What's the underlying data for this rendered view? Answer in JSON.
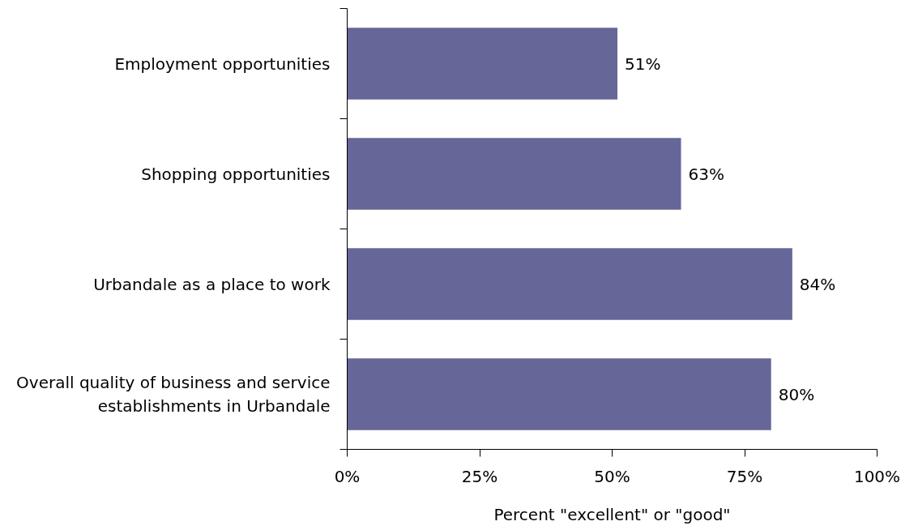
{
  "chart_data": {
    "type": "bar",
    "orientation": "horizontal",
    "categories": [
      "Employment opportunities",
      "Shopping opportunities",
      "Urbandale as a place to work",
      "Overall quality of business and service establishments in Urbandale"
    ],
    "values": [
      51,
      63,
      84,
      80
    ],
    "value_labels": [
      "51%",
      "63%",
      "84%",
      "80%"
    ],
    "color": "#666699",
    "xlabel": "Percent \"excellent\" or \"good\"",
    "xlim": [
      0,
      100
    ],
    "xticks": [
      {
        "value": 0,
        "label": "0%"
      },
      {
        "value": 25,
        "label": "25%"
      },
      {
        "value": 50,
        "label": "50%"
      },
      {
        "value": 75,
        "label": "75%"
      },
      {
        "value": 100,
        "label": "100%"
      }
    ],
    "grid": false
  }
}
